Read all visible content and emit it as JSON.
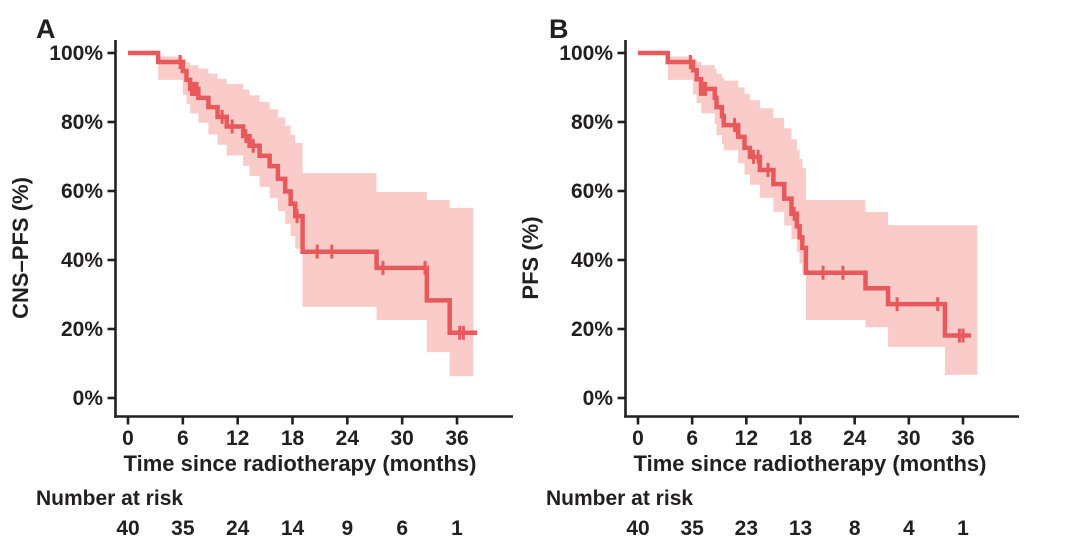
{
  "figure": {
    "background": "#ffffff",
    "line_color": "#E8595B",
    "band_color": "#F9CBC9",
    "axis_color": "#231F20",
    "text_color": "#231F20"
  },
  "chart_data": [
    {
      "type": "line",
      "subtype": "kaplan-meier-step",
      "panel_letter": "A",
      "ylabel": "CNS–PFS (%)",
      "xlabel": "Time since radiotherapy (months)",
      "xlim": [
        0,
        40
      ],
      "ylim": [
        0,
        100
      ],
      "grid": false,
      "legend": "none",
      "x_ticks": [
        {
          "value": 0,
          "label": "0"
        },
        {
          "value": 6,
          "label": "6"
        },
        {
          "value": 12,
          "label": "12"
        },
        {
          "value": 18,
          "label": "18"
        },
        {
          "value": 24,
          "label": "24"
        },
        {
          "value": 30,
          "label": "30"
        },
        {
          "value": 36,
          "label": "36"
        }
      ],
      "y_ticks": [
        {
          "value": 100,
          "label": "100%"
        },
        {
          "value": 80,
          "label": "80%"
        },
        {
          "value": 60,
          "label": "60%"
        },
        {
          "value": 40,
          "label": "40%"
        },
        {
          "value": 20,
          "label": "20%"
        },
        {
          "value": 0,
          "label": "0%"
        }
      ],
      "risk_label": "Number at risk",
      "risk_times": [
        0,
        6,
        12,
        18,
        24,
        30,
        36
      ],
      "number_at_risk": [
        40,
        35,
        24,
        14,
        9,
        6,
        1
      ],
      "steps": [
        [
          0,
          100
        ],
        [
          3.3,
          97.4
        ],
        [
          6.0,
          94.8
        ],
        [
          6.4,
          92.2
        ],
        [
          6.8,
          89.6
        ],
        [
          7.7,
          87.0
        ],
        [
          8.8,
          84.3
        ],
        [
          9.8,
          81.5
        ],
        [
          10.8,
          78.7
        ],
        [
          12.6,
          75.9
        ],
        [
          13.3,
          73.1
        ],
        [
          14.4,
          70.2
        ],
        [
          15.5,
          67.2
        ],
        [
          16.4,
          63.5
        ],
        [
          17.2,
          59.9
        ],
        [
          17.8,
          56.3
        ],
        [
          18.3,
          52.7
        ],
        [
          19.1,
          42.4
        ],
        [
          27.2,
          37.7
        ],
        [
          32.7,
          28.3
        ],
        [
          35.2,
          18.9
        ]
      ],
      "curve_end_t": 38.2,
      "censors": [
        [
          5.7,
          97.4
        ],
        [
          6.95,
          89.6
        ],
        [
          7.15,
          89.6
        ],
        [
          7.35,
          89.6
        ],
        [
          7.55,
          89.6
        ],
        [
          10.3,
          81.5
        ],
        [
          11.4,
          78.7
        ],
        [
          12.9,
          75.9
        ],
        [
          13.7,
          73.1
        ],
        [
          18.5,
          52.7
        ],
        [
          20.7,
          42.4
        ],
        [
          22.3,
          42.4
        ],
        [
          27.9,
          37.7
        ],
        [
          32.5,
          37.7
        ],
        [
          36.3,
          18.9
        ],
        [
          36.7,
          18.9
        ]
      ],
      "band": [
        [
          3.3,
          92.2,
          99.0
        ],
        [
          6.0,
          87.8,
          98.2
        ],
        [
          6.4,
          85.3,
          97.3
        ],
        [
          6.8,
          82.5,
          96.4
        ],
        [
          7.7,
          79.8,
          95.5
        ],
        [
          8.8,
          76.4,
          94.0
        ],
        [
          9.8,
          73.4,
          92.5
        ],
        [
          10.8,
          70.3,
          91.0
        ],
        [
          12.6,
          67.3,
          89.4
        ],
        [
          13.3,
          64.3,
          87.7
        ],
        [
          14.4,
          61.2,
          85.8
        ],
        [
          15.5,
          57.9,
          83.7
        ],
        [
          16.4,
          54.2,
          81.3
        ],
        [
          17.2,
          50.5,
          78.9
        ],
        [
          17.8,
          46.9,
          76.3
        ],
        [
          18.3,
          43.3,
          73.9
        ],
        [
          19.1,
          26.4,
          65.2
        ],
        [
          27.2,
          22.6,
          59.7
        ],
        [
          32.7,
          13.3,
          57.4
        ],
        [
          35.2,
          6.3,
          55.1
        ]
      ],
      "band_end_t": 37.8
    },
    {
      "type": "line",
      "subtype": "kaplan-meier-step",
      "panel_letter": "B",
      "ylabel": "PFS (%)",
      "xlabel": "Time since radiotherapy (months)",
      "xlim": [
        0,
        40
      ],
      "ylim": [
        0,
        100
      ],
      "grid": false,
      "legend": "none",
      "x_ticks": [
        {
          "value": 0,
          "label": "0"
        },
        {
          "value": 6,
          "label": "6"
        },
        {
          "value": 12,
          "label": "12"
        },
        {
          "value": 18,
          "label": "18"
        },
        {
          "value": 24,
          "label": "24"
        },
        {
          "value": 30,
          "label": "30"
        },
        {
          "value": 36,
          "label": "36"
        }
      ],
      "y_ticks": [
        {
          "value": 100,
          "label": "100%"
        },
        {
          "value": 80,
          "label": "80%"
        },
        {
          "value": 60,
          "label": "60%"
        },
        {
          "value": 40,
          "label": "40%"
        },
        {
          "value": 20,
          "label": "20%"
        },
        {
          "value": 0,
          "label": "0%"
        }
      ],
      "risk_label": "Number at risk",
      "risk_times": [
        0,
        6,
        12,
        18,
        24,
        30,
        36
      ],
      "number_at_risk": [
        40,
        35,
        23,
        13,
        8,
        4,
        1
      ],
      "steps": [
        [
          0,
          100
        ],
        [
          3.3,
          97.4
        ],
        [
          6.1,
          95.0
        ],
        [
          6.5,
          92.4
        ],
        [
          7.0,
          89.6
        ],
        [
          8.5,
          87.0
        ],
        [
          8.7,
          84.3
        ],
        [
          9.3,
          81.7
        ],
        [
          9.5,
          79.1
        ],
        [
          11.1,
          75.7
        ],
        [
          11.8,
          72.5
        ],
        [
          12.4,
          69.9
        ],
        [
          13.5,
          66.1
        ],
        [
          15.0,
          62.0
        ],
        [
          16.2,
          57.8
        ],
        [
          17.0,
          53.4
        ],
        [
          17.6,
          49.8
        ],
        [
          17.9,
          46.6
        ],
        [
          18.2,
          43.5
        ],
        [
          18.6,
          36.3
        ],
        [
          25.2,
          31.8
        ],
        [
          27.7,
          27.2
        ],
        [
          34.0,
          18.1
        ]
      ],
      "curve_end_t": 36.9,
      "censors": [
        [
          5.8,
          97.4
        ],
        [
          6.9,
          89.6
        ],
        [
          7.2,
          89.6
        ],
        [
          7.5,
          89.6
        ],
        [
          10.7,
          79.1
        ],
        [
          12.8,
          69.9
        ],
        [
          13.3,
          69.9
        ],
        [
          14.4,
          66.1
        ],
        [
          17.3,
          53.4
        ],
        [
          20.5,
          36.3
        ],
        [
          22.7,
          36.3
        ],
        [
          28.7,
          27.2
        ],
        [
          33.2,
          27.2
        ],
        [
          35.6,
          18.1
        ],
        [
          36.0,
          18.1
        ]
      ],
      "band": [
        [
          3.3,
          92.2,
          99.0
        ],
        [
          6.1,
          88.0,
          98.3
        ],
        [
          6.5,
          85.5,
          97.4
        ],
        [
          7.0,
          82.5,
          96.5
        ],
        [
          8.5,
          79.5,
          95.4
        ],
        [
          8.7,
          76.2,
          94.0
        ],
        [
          9.3,
          73.7,
          92.9
        ],
        [
          9.5,
          71.8,
          92.0
        ],
        [
          11.1,
          68.0,
          90.0
        ],
        [
          11.8,
          64.8,
          88.2
        ],
        [
          12.4,
          61.8,
          86.3
        ],
        [
          13.5,
          58.0,
          84.0
        ],
        [
          15.0,
          54.0,
          81.2
        ],
        [
          16.2,
          50.0,
          78.2
        ],
        [
          17.0,
          46.0,
          75.0
        ],
        [
          17.6,
          42.3,
          72.0
        ],
        [
          17.9,
          39.0,
          69.3
        ],
        [
          18.2,
          36.0,
          66.6
        ],
        [
          18.6,
          22.6,
          57.4
        ],
        [
          25.2,
          20.5,
          53.9
        ],
        [
          27.7,
          14.8,
          50.1
        ],
        [
          34.0,
          6.7,
          50.1
        ]
      ],
      "band_end_t": 37.6
    }
  ]
}
